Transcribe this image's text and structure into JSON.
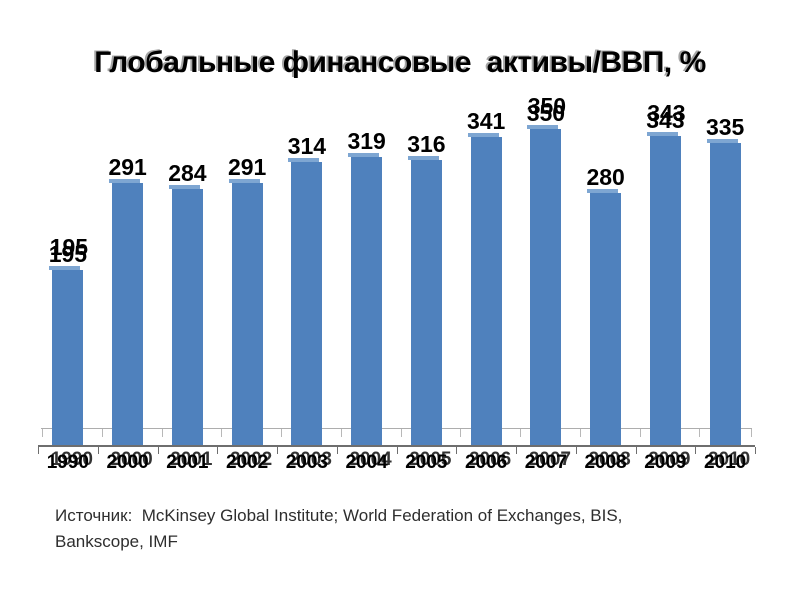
{
  "title": "Глобальные финансовые  активы/ВВП, %",
  "chart_data": {
    "type": "bar",
    "title": "Глобальные финансовые  активы/ВВП, %",
    "categories": [
      "1990",
      "2000",
      "2001",
      "2002",
      "2003",
      "2004",
      "2005",
      "2006",
      "2007",
      "2008",
      "2009",
      "2010"
    ],
    "values": [
      195,
      291,
      284,
      291,
      314,
      319,
      316,
      341,
      350,
      280,
      343,
      335
    ],
    "xlabel": "",
    "ylabel": "",
    "ylim": [
      0,
      390
    ],
    "grid": false,
    "legend": false,
    "value_labels_shown": true,
    "bar_color": "#4f81bd",
    "ghost_bar_color": "#7ea6d2",
    "axis_color": "#6e6e6e",
    "ghost_axis_color": "#adadad",
    "double_printed_label_indices": [
      0,
      8,
      10
    ]
  },
  "source": {
    "line1": "Источник:  McKinsey Global Institute; World Federation of Exchanges, BIS,",
    "line2": "Bankscope, IMF"
  }
}
